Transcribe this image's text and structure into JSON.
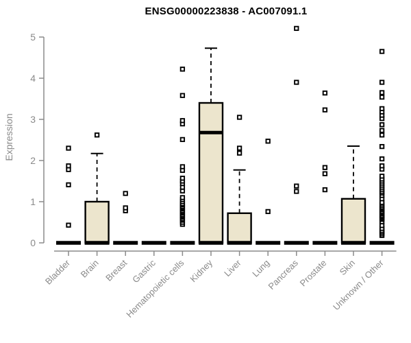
{
  "chart_data": {
    "type": "boxplot",
    "title": "ENSG00000223838 - AC007091.1",
    "ylabel": "Expression",
    "xlabel": "",
    "ylim": [
      0,
      5.35
    ],
    "yticks": [
      0,
      1,
      2,
      3,
      4,
      5
    ],
    "grid": false,
    "legend": "none",
    "box_fill_color": "#ece5cd",
    "box_stroke_color": "#000000",
    "axis_color": "#8a8a8a",
    "tick_label_color": "#8a8a8a",
    "outlier_marker": "open-square",
    "categories": [
      "Bladder",
      "Brain",
      "Breast",
      "Gastric",
      "Hematopoietic cells",
      "Kidney",
      "Liver",
      "Lung",
      "Pancreas",
      "Prostate",
      "Skin",
      "Unknown / Other"
    ],
    "series": [
      {
        "category": "Bladder",
        "q1": 0,
        "median": 0,
        "q3": 0,
        "whisker_low": 0,
        "whisker_high": 0,
        "outliers": [
          0.43,
          1.41,
          1.78,
          1.87,
          2.3
        ]
      },
      {
        "category": "Brain",
        "q1": 0,
        "median": 0,
        "q3": 1.0,
        "whisker_low": 0,
        "whisker_high": 2.17,
        "outliers": [
          2.62
        ]
      },
      {
        "category": "Breast",
        "q1": 0,
        "median": 0,
        "q3": 0,
        "whisker_low": 0,
        "whisker_high": 0,
        "outliers": [
          0.78,
          0.85,
          1.2
        ]
      },
      {
        "category": "Gastric",
        "q1": 0,
        "median": 0,
        "q3": 0,
        "whisker_low": 0,
        "whisker_high": 0,
        "outliers": []
      },
      {
        "category": "Hematopoietic cells",
        "q1": 0,
        "median": 0,
        "q3": 0,
        "whisker_low": 0,
        "whisker_high": 0,
        "outliers": [
          0.45,
          0.5,
          0.55,
          0.58,
          0.62,
          0.65,
          0.68,
          0.72,
          0.75,
          0.78,
          0.82,
          0.85,
          0.88,
          0.92,
          0.95,
          1.0,
          1.05,
          1.1,
          1.26,
          1.35,
          1.44,
          1.5,
          1.57,
          1.76,
          1.85,
          2.51,
          2.89,
          2.97,
          3.58,
          4.22
        ]
      },
      {
        "category": "Kidney",
        "q1": 0,
        "median": 2.68,
        "q3": 3.4,
        "whisker_low": 0,
        "whisker_high": 4.73,
        "outliers": []
      },
      {
        "category": "Liver",
        "q1": 0,
        "median": 0,
        "q3": 0.72,
        "whisker_low": 0,
        "whisker_high": 1.77,
        "outliers": [
          2.18,
          2.3,
          3.05
        ]
      },
      {
        "category": "Lung",
        "q1": 0,
        "median": 0,
        "q3": 0,
        "whisker_low": 0,
        "whisker_high": 0,
        "outliers": [
          0.76,
          2.47
        ]
      },
      {
        "category": "Pancreas",
        "q1": 0,
        "median": 0,
        "q3": 0,
        "whisker_low": 0,
        "whisker_high": 0,
        "outliers": [
          1.25,
          1.38,
          3.9,
          5.21
        ]
      },
      {
        "category": "Prostate",
        "q1": 0,
        "median": 0,
        "q3": 0,
        "whisker_low": 0,
        "whisker_high": 0,
        "outliers": [
          1.29,
          1.68,
          1.83,
          3.23,
          3.64
        ]
      },
      {
        "category": "Skin",
        "q1": 0,
        "median": 0,
        "q3": 1.07,
        "whisker_low": 0,
        "whisker_high": 2.35,
        "outliers": []
      },
      {
        "category": "Unknown / Other",
        "q1": 0,
        "median": 0,
        "q3": 0,
        "whisker_low": 0,
        "whisker_high": 0,
        "outliers": [
          0.18,
          0.22,
          0.26,
          0.3,
          0.35,
          0.42,
          0.51,
          0.57,
          0.6,
          0.63,
          0.66,
          0.7,
          0.73,
          0.76,
          0.8,
          0.83,
          0.86,
          0.9,
          0.94,
          0.98,
          1.07,
          1.15,
          1.21,
          1.25,
          1.3,
          1.35,
          1.4,
          1.45,
          1.5,
          1.55,
          1.62,
          1.79,
          1.87,
          2.04,
          2.34,
          2.62,
          2.73,
          2.87,
          3.02,
          3.1,
          3.18,
          3.26,
          3.54,
          3.65,
          3.9,
          4.65
        ]
      }
    ]
  }
}
